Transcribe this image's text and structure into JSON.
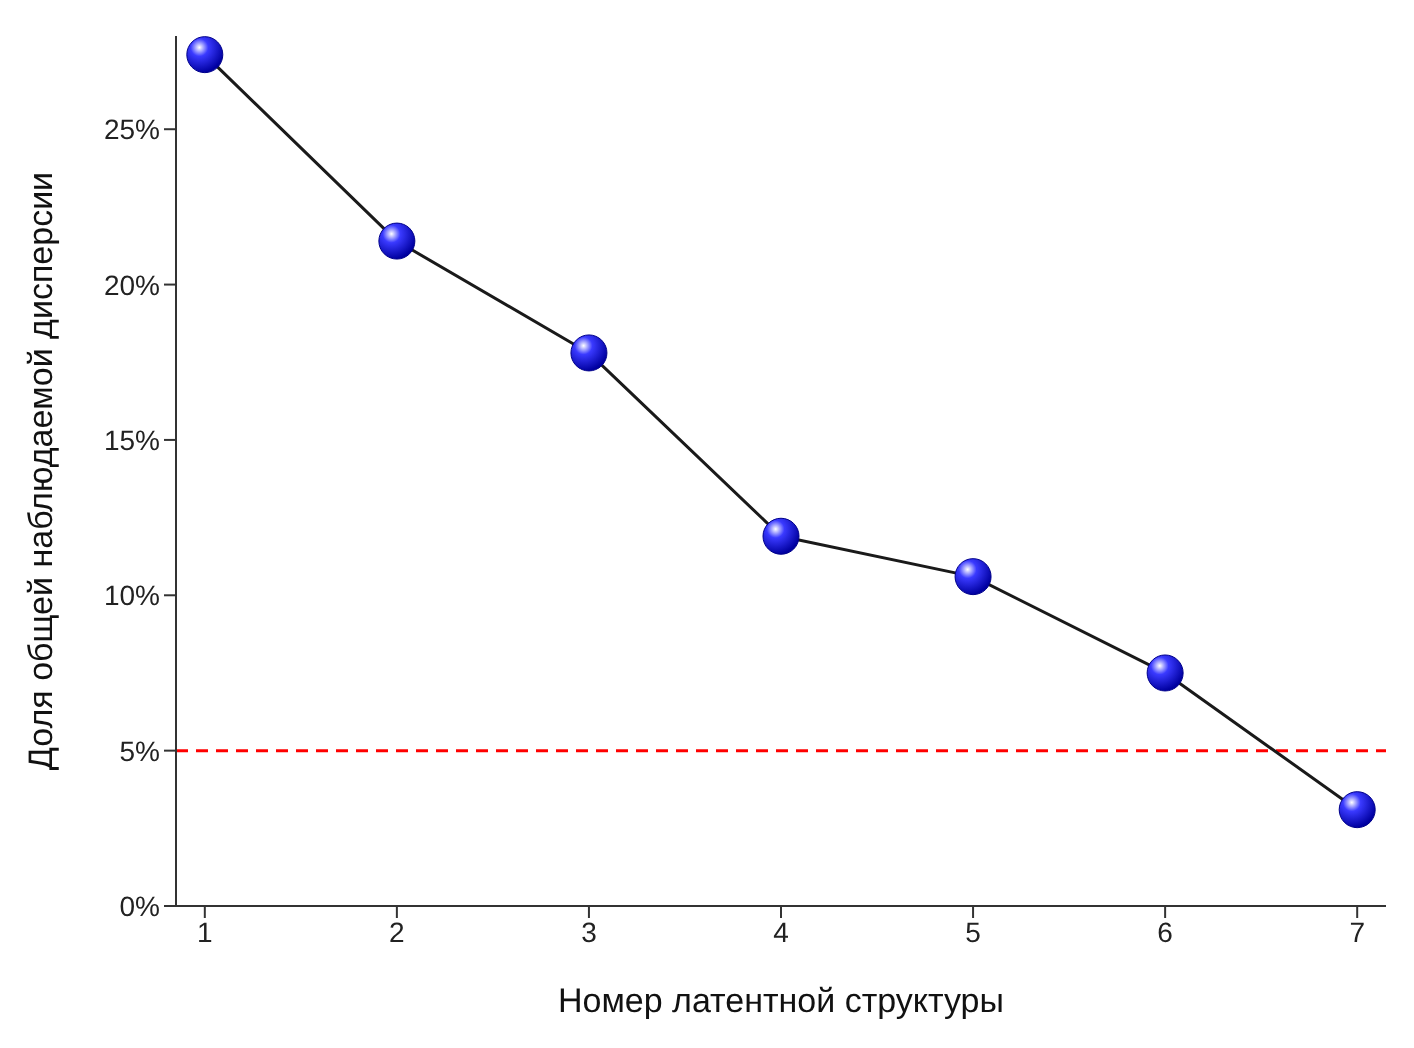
{
  "chart_data": {
    "type": "line",
    "xlabel": "Номер латентной структуры",
    "ylabel": "Доля общей наблюдаемой дисперсии",
    "x": [
      1,
      2,
      3,
      4,
      5,
      6,
      7
    ],
    "series": [
      {
        "color": "#1a1a1a",
        "values": [
          27.4,
          21.4,
          17.8,
          11.9,
          10.6,
          7.5,
          3.1
        ]
      }
    ],
    "xlim": [
      0.85,
      7.15
    ],
    "xticks": [
      1,
      2,
      3,
      4,
      5,
      6,
      7
    ],
    "ylim": [
      0,
      28
    ],
    "yticks": [
      {
        "value": 0,
        "label": "0%"
      },
      {
        "value": 5,
        "label": "5%"
      },
      {
        "value": 10,
        "label": "10%"
      },
      {
        "value": 15,
        "label": "15%"
      },
      {
        "value": 20,
        "label": "20%"
      },
      {
        "value": 25,
        "label": "25%"
      }
    ],
    "ref_lines": [
      {
        "axis": "y",
        "value": 5,
        "color": "#ff0000",
        "line_style": "dashed"
      }
    ],
    "marker": "circle",
    "grid": false,
    "legend": false
  }
}
